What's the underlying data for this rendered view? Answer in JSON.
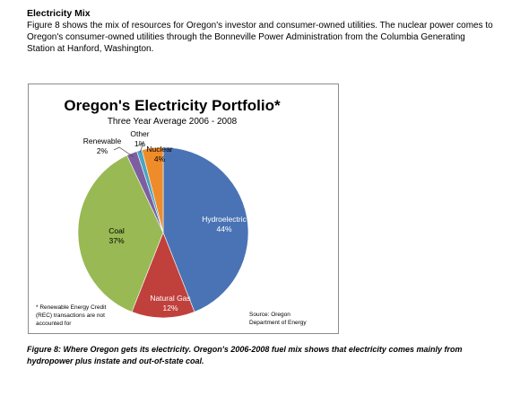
{
  "document": {
    "section_title": "Electricity Mix",
    "intro": "Figure 8 shows the mix of resources for Oregon's investor and consumer-owned utilities. The nuclear power comes to Oregon's consumer-owned utilities through the Bonneville Power Administration from the Columbia Generating Station at Hanford, Washington.",
    "caption": "Figure 8: Where Oregon gets its electricity. Oregon's 2006-2008 fuel mix shows that electricity comes mainly from hydropower plus instate and out-of-state coal."
  },
  "chart_data": {
    "type": "pie",
    "title": "Oregon's Electricity Portfolio*",
    "subtitle": "Three Year Average 2006 - 2008",
    "slices": [
      {
        "label": "Hydroelectric",
        "value": 44,
        "value_label": "44%",
        "color": "#4a73b5"
      },
      {
        "label": "Natural Gas",
        "value": 12,
        "value_label": "12%",
        "color": "#c0403c"
      },
      {
        "label": "Coal",
        "value": 37,
        "value_label": "37%",
        "color": "#98b954"
      },
      {
        "label": "Renewable",
        "value": 2,
        "value_label": "2%",
        "color": "#7d5fa0"
      },
      {
        "label": "Other",
        "value": 1,
        "value_label": "1%",
        "color": "#4aa6c2"
      },
      {
        "label": "Nuclear",
        "value": 4,
        "value_label": "4%",
        "color": "#ef8c2a"
      }
    ],
    "footnote": [
      "* Renewable Energy Credit",
      "(REC) transactions are not",
      "accounted for"
    ],
    "source": [
      "Source: Oregon",
      "Department of Energy"
    ]
  }
}
